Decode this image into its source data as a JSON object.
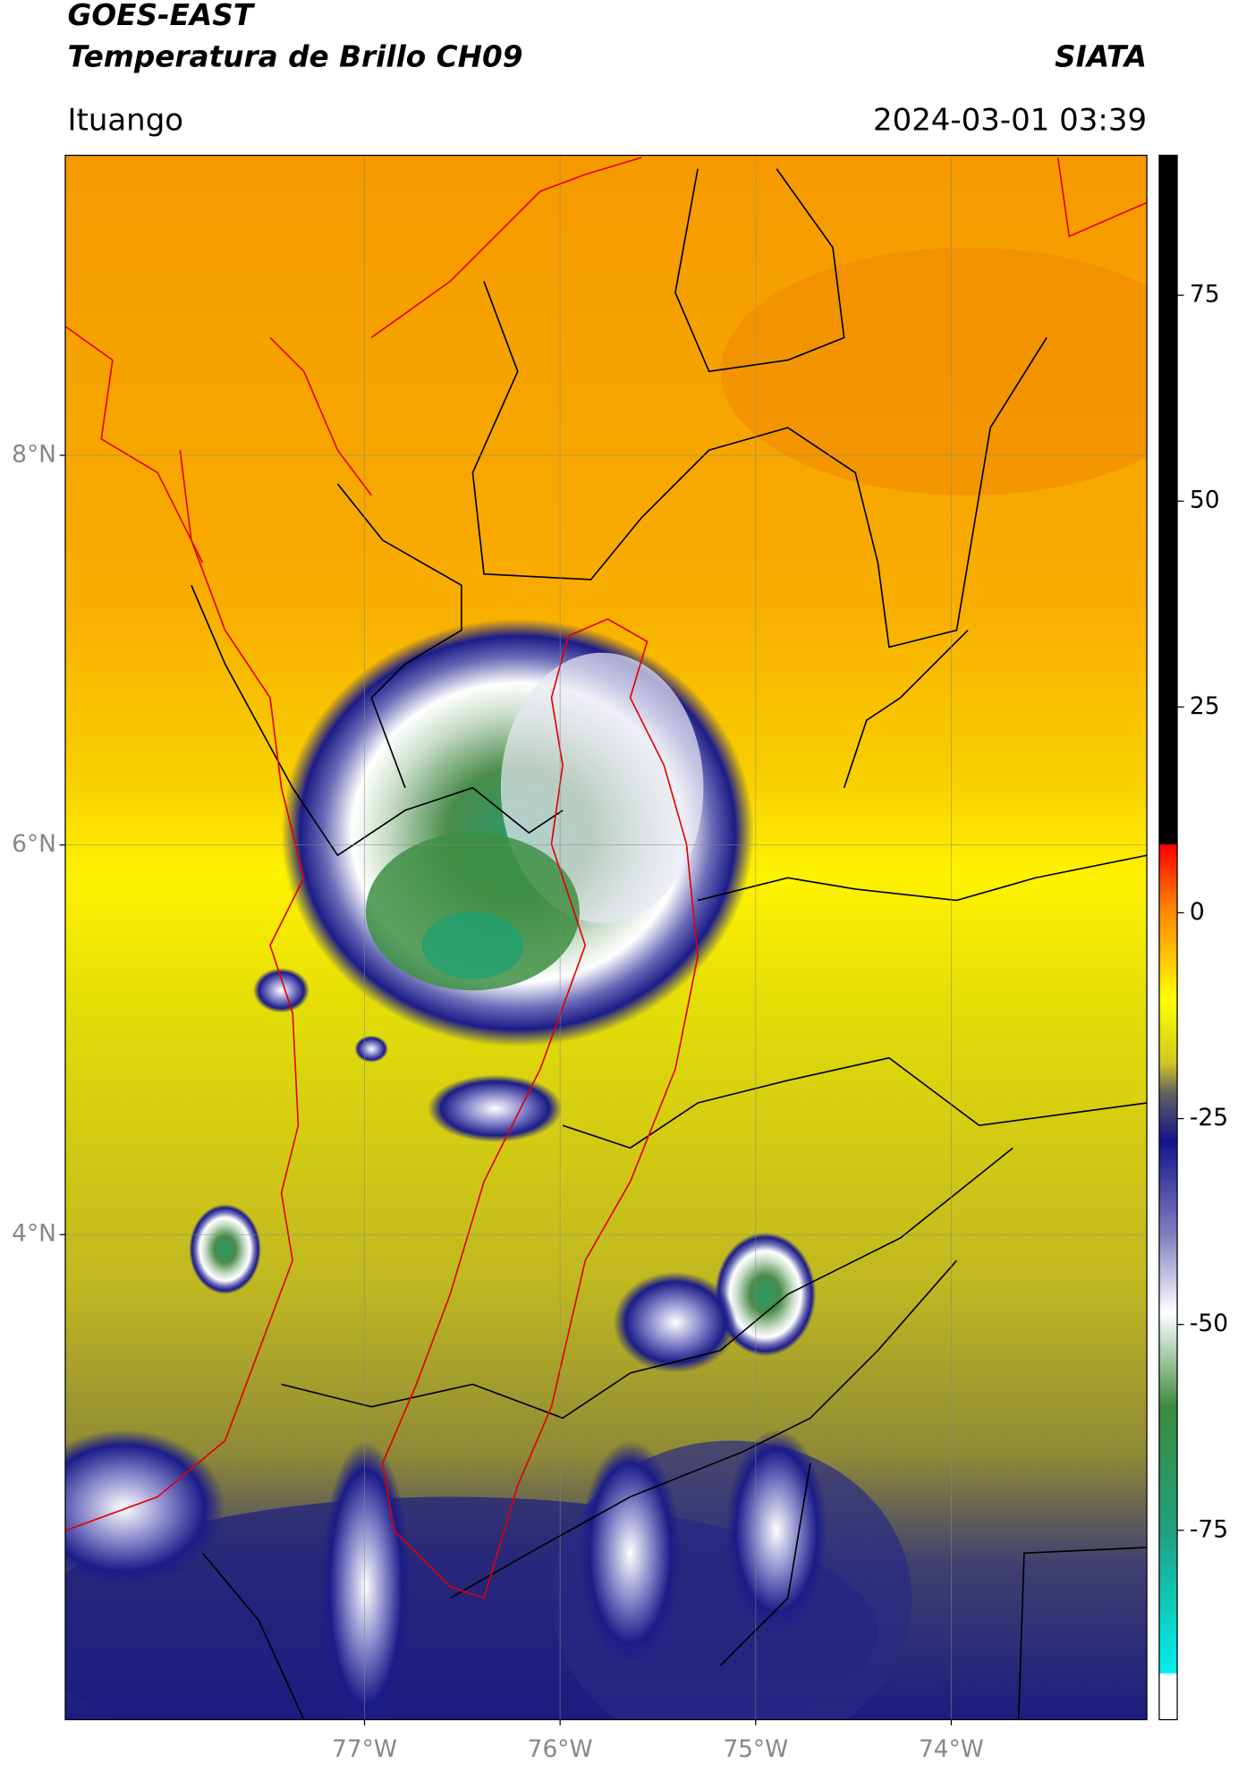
{
  "header": {
    "title": "GOES-EAST",
    "subtitle": "Temperatura de Brillo CH09",
    "source": "SIATA",
    "location": "Ituango",
    "datetime": "2024-03-01 03:39"
  },
  "map": {
    "xlim": [
      -78.53,
      -73.0
    ],
    "ylim": [
      1.51,
      9.54
    ],
    "xticks": [
      {
        "value": -77,
        "label": "77°W"
      },
      {
        "value": -76,
        "label": "76°W"
      },
      {
        "value": -75,
        "label": "75°W"
      },
      {
        "value": -74,
        "label": "74°W"
      }
    ],
    "yticks": [
      {
        "value": 4,
        "label": "4°N"
      },
      {
        "value": 6,
        "label": "6°N"
      },
      {
        "value": 8,
        "label": "8°N"
      }
    ],
    "grid": true
  },
  "colorbar": {
    "lim": [
      -98,
      92
    ],
    "ticks": [
      -75,
      -50,
      -25,
      0,
      25,
      50,
      75
    ]
  }
}
